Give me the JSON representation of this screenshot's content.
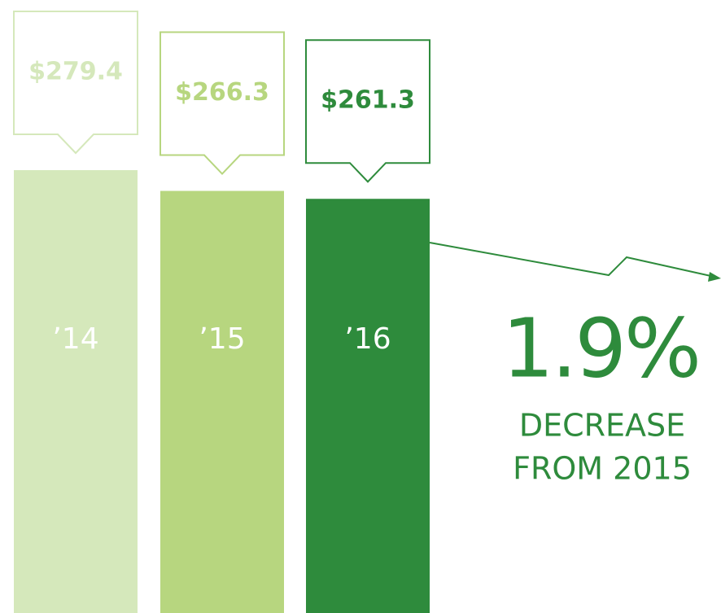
{
  "chart_data": {
    "type": "bar",
    "categories": [
      "’14",
      "’15",
      "’16"
    ],
    "values": [
      279.4,
      266.3,
      261.3
    ],
    "value_labels": [
      "$279.4",
      "$266.3",
      "$261.3"
    ],
    "colors": [
      "#d5e8bb",
      "#b7d67f",
      "#2e8b3c"
    ],
    "annotation": {
      "value": "1.9%",
      "text": [
        "DECREASE",
        "FROM 2015"
      ]
    }
  }
}
